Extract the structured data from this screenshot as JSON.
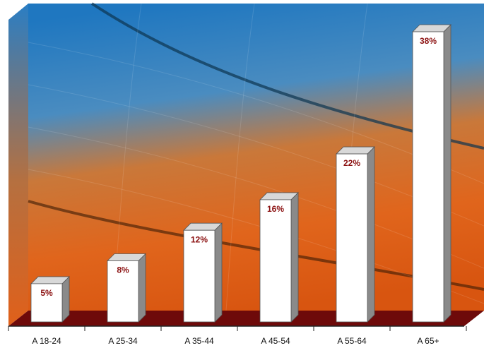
{
  "chart_data": {
    "type": "bar3d",
    "categories": [
      "A 18-24",
      "A 25-34",
      "A 35-44",
      "A 45-54",
      "A 55-64",
      "A 65+"
    ],
    "values": [
      5,
      8,
      12,
      16,
      22,
      38
    ],
    "value_labels": [
      "5%",
      "8%",
      "12%",
      "16%",
      "22%",
      "38%"
    ],
    "color": "#ffffff",
    "label_color": "#8b1010",
    "floor_color": "#6e0a0a"
  }
}
